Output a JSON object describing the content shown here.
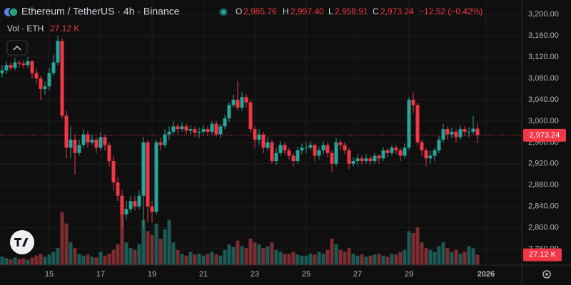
{
  "chart_data": {
    "type": "candlestick",
    "title": "Ethereum / TetherUS · 4h · Binance",
    "legend_keys": [
      "O",
      "H",
      "L",
      "C"
    ],
    "legend_values": [
      "2,985.76",
      "2,997.40",
      "2,958.91",
      "2,973.24"
    ],
    "change": "−12.52 (−0.42%)",
    "volume_title": "Vol · ETH",
    "volume_last": "27.12 K",
    "up_color": "#26a69a",
    "down_color": "#f23645",
    "up_volume_color": "#1c5b55",
    "down_volume_color": "#7c2d32",
    "ylim": [
      2730,
      3227
    ],
    "yticks": [
      {
        "value": 3200,
        "label": "3,200.00"
      },
      {
        "value": 3160,
        "label": "3,160.00"
      },
      {
        "value": 3120,
        "label": "3,120.00"
      },
      {
        "value": 3080,
        "label": "3,080.00"
      },
      {
        "value": 3040,
        "label": "3,040.00"
      },
      {
        "value": 3000,
        "label": "3,000.00"
      },
      {
        "value": 2960,
        "label": "2,960.00"
      },
      {
        "value": 2920,
        "label": "2,920.00"
      },
      {
        "value": 2880,
        "label": "2,880.00"
      },
      {
        "value": 2840,
        "label": "2,840.00"
      },
      {
        "value": 2800,
        "label": "2,800.00"
      },
      {
        "value": 2760,
        "label": "2,760.00"
      }
    ],
    "grid": true,
    "last_price": {
      "value": 2973.24,
      "label": "2,973.24"
    },
    "categories": [
      null,
      null,
      null,
      null,
      null,
      null,
      null,
      null,
      null,
      null,
      null,
      "15",
      null,
      null,
      null,
      null,
      null,
      null,
      null,
      null,
      null,
      null,
      null,
      "17",
      null,
      null,
      null,
      null,
      null,
      null,
      null,
      null,
      null,
      null,
      null,
      "19",
      null,
      null,
      null,
      null,
      null,
      null,
      null,
      null,
      null,
      null,
      null,
      "21",
      null,
      null,
      null,
      null,
      null,
      null,
      null,
      null,
      null,
      null,
      null,
      "23",
      null,
      null,
      null,
      null,
      null,
      null,
      null,
      null,
      null,
      null,
      null,
      "25",
      null,
      null,
      null,
      null,
      null,
      null,
      null,
      null,
      null,
      null,
      null,
      "27",
      null,
      null,
      null,
      null,
      null,
      null,
      null,
      null,
      null,
      null,
      null,
      "29",
      null,
      null,
      null,
      null,
      null,
      null,
      null,
      null,
      null,
      null,
      null,
      null,
      null,
      null,
      null,
      null,
      null,
      "2026"
    ],
    "open": [
      3090,
      3095,
      3105,
      3100,
      3110,
      3108,
      3105,
      3112,
      3090,
      3080,
      3060,
      3065,
      3090,
      3110,
      3150,
      3010,
      2950,
      2965,
      2940,
      2955,
      2975,
      2960,
      2965,
      2950,
      2970,
      2955,
      2925,
      2885,
      2860,
      2825,
      2835,
      2850,
      2840,
      2860,
      2960,
      2840,
      2830,
      2960,
      2955,
      2975,
      2980,
      2990,
      2985,
      2990,
      2982,
      2985,
      2978,
      2980,
      2985,
      2980,
      2995,
      2975,
      2990,
      3005,
      3030,
      3040,
      3025,
      3045,
      3035,
      2985,
      2965,
      2975,
      2950,
      2960,
      2925,
      2940,
      2955,
      2945,
      2935,
      2925,
      2945,
      2950,
      2950,
      2955,
      2935,
      2945,
      2955,
      2940,
      2920,
      2960,
      2955,
      2945,
      2920,
      2925,
      2930,
      2925,
      2930,
      2925,
      2935,
      2930,
      2945,
      2940,
      2950,
      2945,
      2935,
      2950,
      3040,
      3030,
      2960,
      2945,
      2930,
      2935,
      2945,
      2965,
      2985,
      2975,
      2980,
      2970,
      2985,
      2980,
      2980,
      2985.76,
      null,
      null
    ],
    "high": [
      3105,
      3112,
      3110,
      3118,
      3115,
      3115,
      3120,
      3115,
      3098,
      3085,
      3075,
      3100,
      3125,
      3160,
      3155,
      3020,
      2990,
      2975,
      2965,
      2985,
      2982,
      2975,
      2970,
      2980,
      2975,
      2960,
      2935,
      2895,
      2870,
      2850,
      2860,
      2860,
      2870,
      2970,
      2965,
      2850,
      2965,
      2968,
      2985,
      2990,
      3000,
      2995,
      2998,
      2995,
      2992,
      2990,
      2988,
      2992,
      2990,
      3000,
      3000,
      2995,
      3012,
      3035,
      3050,
      3075,
      3055,
      3050,
      3040,
      2990,
      2985,
      2980,
      2970,
      2965,
      2950,
      2962,
      2960,
      2950,
      2940,
      2952,
      2958,
      2960,
      2962,
      2958,
      2952,
      2962,
      2960,
      2945,
      2968,
      2965,
      2960,
      2950,
      2932,
      2938,
      2935,
      2938,
      2935,
      2940,
      2938,
      2952,
      2950,
      2955,
      2955,
      2950,
      2958,
      3045,
      3055,
      3035,
      2965,
      2950,
      2945,
      2950,
      2972,
      2995,
      2990,
      2988,
      2985,
      2992,
      2990,
      2988,
      3010,
      2997.4,
      null,
      null
    ],
    "low": [
      3082,
      3088,
      3095,
      3095,
      3100,
      3098,
      3100,
      3080,
      3070,
      3040,
      3050,
      3058,
      3085,
      3105,
      3005,
      2930,
      2930,
      2900,
      2935,
      2950,
      2950,
      2955,
      2940,
      2945,
      2945,
      2915,
      2870,
      2850,
      2800,
      2815,
      2828,
      2832,
      2835,
      2800,
      2810,
      2810,
      2825,
      2945,
      2950,
      2965,
      2975,
      2975,
      2980,
      2975,
      2975,
      2970,
      2968,
      2975,
      2972,
      2975,
      2970,
      2968,
      2985,
      2998,
      3025,
      3020,
      3020,
      3025,
      2978,
      2950,
      2955,
      2940,
      2945,
      2920,
      2918,
      2935,
      2938,
      2928,
      2915,
      2920,
      2938,
      2940,
      2945,
      2925,
      2928,
      2938,
      2932,
      2905,
      2915,
      2945,
      2938,
      2910,
      2915,
      2918,
      2918,
      2920,
      2918,
      2920,
      2920,
      2925,
      2932,
      2935,
      2938,
      2925,
      2930,
      2945,
      3015,
      2955,
      2935,
      2915,
      2920,
      2925,
      2940,
      2960,
      2965,
      2968,
      2960,
      2965,
      2972,
      2970,
      2975,
      2958.91,
      null,
      null
    ],
    "close": [
      3095,
      3105,
      3100,
      3110,
      3108,
      3105,
      3112,
      3090,
      3080,
      3060,
      3065,
      3090,
      3110,
      3150,
      3010,
      2950,
      2965,
      2940,
      2955,
      2975,
      2960,
      2965,
      2950,
      2970,
      2955,
      2925,
      2885,
      2860,
      2825,
      2835,
      2850,
      2840,
      2860,
      2960,
      2840,
      2830,
      2960,
      2955,
      2975,
      2980,
      2990,
      2985,
      2990,
      2982,
      2985,
      2978,
      2980,
      2985,
      2980,
      2995,
      2975,
      2990,
      3005,
      3030,
      3040,
      3025,
      3045,
      3035,
      2985,
      2965,
      2975,
      2950,
      2960,
      2925,
      2940,
      2955,
      2945,
      2935,
      2925,
      2945,
      2950,
      2950,
      2955,
      2935,
      2945,
      2955,
      2940,
      2920,
      2960,
      2955,
      2945,
      2920,
      2925,
      2930,
      2925,
      2930,
      2925,
      2935,
      2930,
      2945,
      2940,
      2950,
      2945,
      2935,
      2950,
      3040,
      3030,
      2960,
      2945,
      2930,
      2935,
      2945,
      2965,
      2985,
      2975,
      2980,
      2970,
      2985,
      2980,
      2980,
      2985.76,
      2973.24,
      null,
      null
    ],
    "volume": [
      22,
      18,
      15,
      20,
      16,
      18,
      14,
      20,
      25,
      30,
      22,
      28,
      35,
      45,
      140,
      110,
      60,
      45,
      30,
      25,
      28,
      22,
      20,
      35,
      25,
      30,
      40,
      55,
      170,
      60,
      45,
      40,
      55,
      120,
      90,
      80,
      110,
      70,
      95,
      120,
      60,
      40,
      30,
      25,
      35,
      28,
      30,
      25,
      30,
      35,
      28,
      25,
      40,
      55,
      48,
      65,
      50,
      45,
      70,
      60,
      55,
      45,
      50,
      60,
      40,
      35,
      30,
      30,
      35,
      28,
      25,
      25,
      30,
      28,
      35,
      30,
      40,
      70,
      55,
      40,
      35,
      45,
      30,
      25,
      28,
      22,
      25,
      28,
      30,
      25,
      22,
      30,
      28,
      35,
      40,
      90,
      85,
      100,
      60,
      45,
      40,
      35,
      50,
      60,
      45,
      35,
      40,
      30,
      35,
      50,
      45,
      27.12,
      null,
      null
    ]
  }
}
